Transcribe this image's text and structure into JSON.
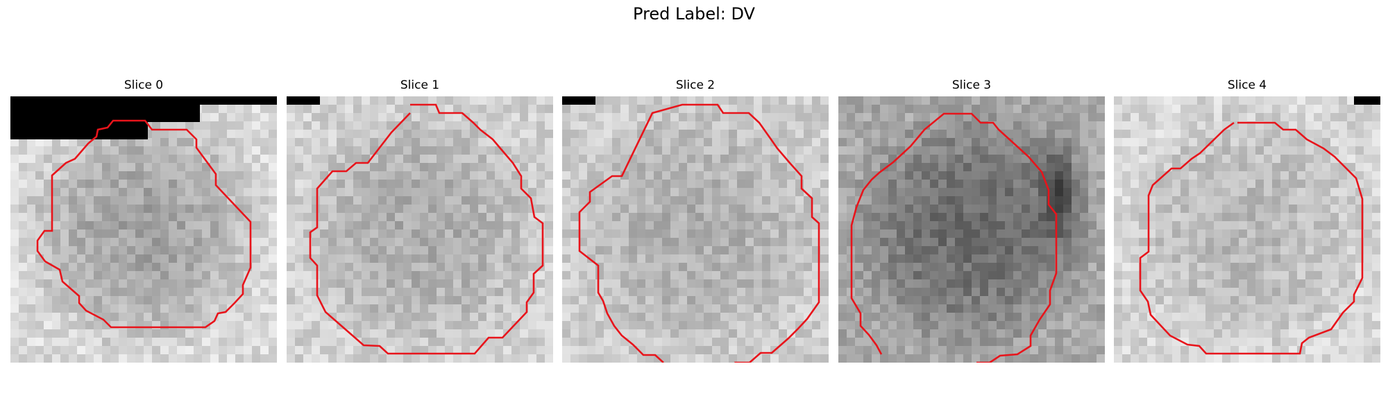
{
  "figure": {
    "title": "Pred Label: DV"
  },
  "slices": [
    {
      "title": "Slice 0",
      "seed": 11,
      "base": 162,
      "edge": 218,
      "dark": []
    },
    {
      "title": "Slice 1",
      "seed": 23,
      "base": 172,
      "edge": 210,
      "dark": []
    },
    {
      "title": "Slice 2",
      "seed": 37,
      "base": 175,
      "edge": 205,
      "dark": []
    },
    {
      "title": "Slice 3",
      "seed": 53,
      "base": 108,
      "edge": 168,
      "dark": [
        {
          "c": 26,
          "r": 11,
          "s": 0.55
        }
      ]
    },
    {
      "title": "Slice 4",
      "seed": 71,
      "base": 185,
      "edge": 215,
      "dark": []
    }
  ],
  "colors": {
    "contour": "#e8141b",
    "mask": "#000000"
  }
}
